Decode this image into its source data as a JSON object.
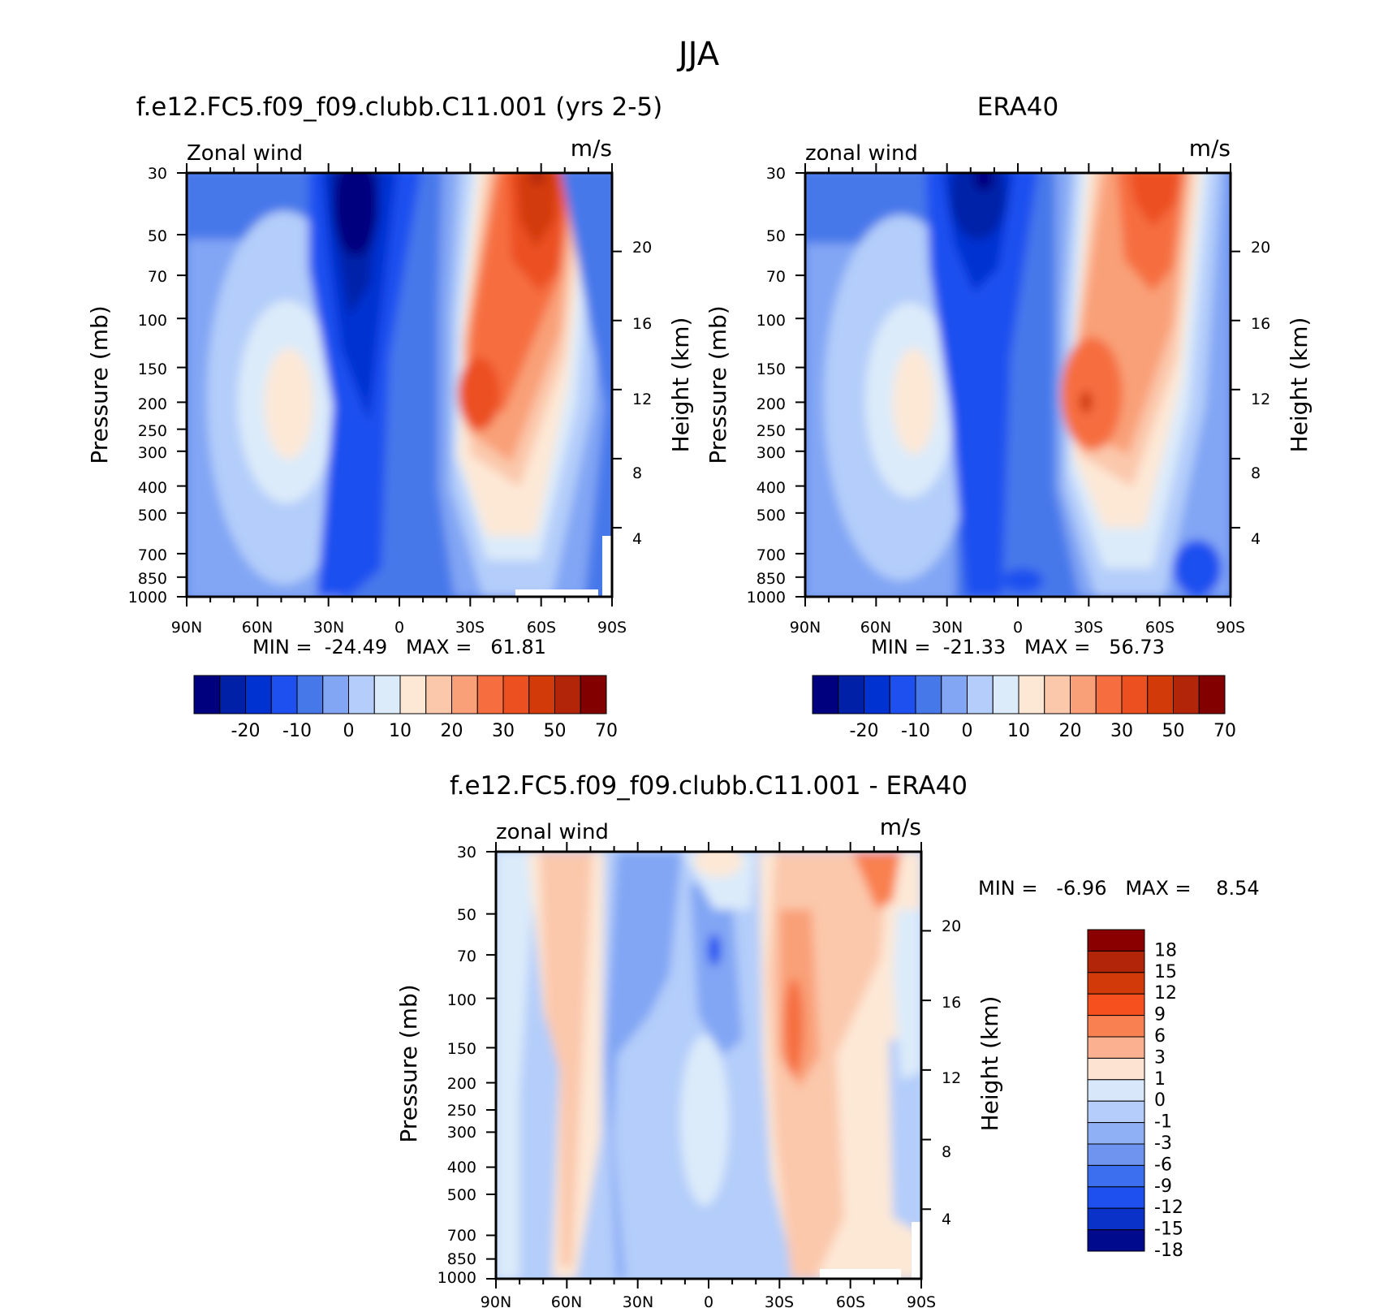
{
  "figure": {
    "title": "JJA"
  },
  "chart_data": [
    {
      "type": "heatmap",
      "id": "panel-model",
      "title": "f.e12.FC5.f09_f09.clubb.C11.001 (yrs 2-5)",
      "left_label": "Zonal wind",
      "right_label": "m/s",
      "ylabel": "Pressure (mb)",
      "y2label": "Height (km)",
      "x_ticks": [
        "90N",
        "60N",
        "30N",
        "0",
        "30S",
        "60S",
        "90S"
      ],
      "y_ticks": [
        "30",
        "50",
        "70",
        "100",
        "150",
        "200",
        "250",
        "300",
        "400",
        "500",
        "700",
        "850",
        "1000"
      ],
      "y2_ticks": [
        "20",
        "16",
        "12",
        "8",
        "4"
      ],
      "stats_text": "MIN =  -24.49   MAX =   61.81",
      "min": -24.49,
      "max": 61.81,
      "colorbar_ticks": [
        "-20",
        "-10",
        "0",
        "10",
        "20",
        "30",
        "50",
        "70"
      ],
      "colors": [
        "#00007f",
        "#0020a8",
        "#0032d2",
        "#1e50f0",
        "#4678ea",
        "#82a6f4",
        "#b4cdfa",
        "#dcebfa",
        "#fde8d6",
        "#fbc8ac",
        "#f9a078",
        "#f66e40",
        "#ec5020",
        "#d23a0a",
        "#b32508",
        "#820000"
      ]
    },
    {
      "type": "heatmap",
      "id": "panel-era40",
      "title": "ERA40",
      "left_label": "zonal wind",
      "right_label": "m/s",
      "ylabel": "Pressure (mb)",
      "y2label": "Height (km)",
      "x_ticks": [
        "90N",
        "60N",
        "30N",
        "0",
        "30S",
        "60S",
        "90S"
      ],
      "y_ticks": [
        "30",
        "50",
        "70",
        "100",
        "150",
        "200",
        "250",
        "300",
        "400",
        "500",
        "700",
        "850",
        "1000"
      ],
      "y2_ticks": [
        "20",
        "16",
        "12",
        "8",
        "4"
      ],
      "stats_text": "MIN =  -21.33   MAX =   56.73",
      "min": -21.33,
      "max": 56.73,
      "colorbar_ticks": [
        "-20",
        "-10",
        "0",
        "10",
        "20",
        "30",
        "50",
        "70"
      ],
      "colors": [
        "#00007f",
        "#0020a8",
        "#0032d2",
        "#1e50f0",
        "#4678ea",
        "#82a6f4",
        "#b4cdfa",
        "#dcebfa",
        "#fde8d6",
        "#fbc8ac",
        "#f9a078",
        "#f66e40",
        "#ec5020",
        "#d23a0a",
        "#b32508",
        "#820000"
      ]
    },
    {
      "type": "heatmap",
      "id": "panel-diff",
      "title": "f.e12.FC5.f09_f09.clubb.C11.001 - ERA40",
      "left_label": "zonal wind",
      "right_label": "m/s",
      "ylabel": "Pressure (mb)",
      "y2label": "Height (km)",
      "x_ticks": [
        "90N",
        "60N",
        "30N",
        "0",
        "30S",
        "60S",
        "90S"
      ],
      "y_ticks": [
        "30",
        "50",
        "70",
        "100",
        "150",
        "200",
        "250",
        "300",
        "400",
        "500",
        "700",
        "850",
        "1000"
      ],
      "y2_ticks": [
        "20",
        "16",
        "12",
        "8",
        "4"
      ],
      "stats_text": "MIN =   -6.96   MAX =    8.54",
      "min": -6.96,
      "max": 8.54,
      "colorbar_ticks": [
        "18",
        "15",
        "12",
        "9",
        "6",
        "3",
        "1",
        "0",
        "-1",
        "-3",
        "-6",
        "-9",
        "-12",
        "-15",
        "-18"
      ],
      "colors": [
        "#8a0000",
        "#b32508",
        "#d23a0a",
        "#f6501e",
        "#f98050",
        "#fbb090",
        "#fde4d2",
        "#d8e8fa",
        "#b4cdfa",
        "#90b0f6",
        "#6e94f0",
        "#3c6ef0",
        "#1e50f0",
        "#0a32c8",
        "#000a8c"
      ]
    }
  ]
}
